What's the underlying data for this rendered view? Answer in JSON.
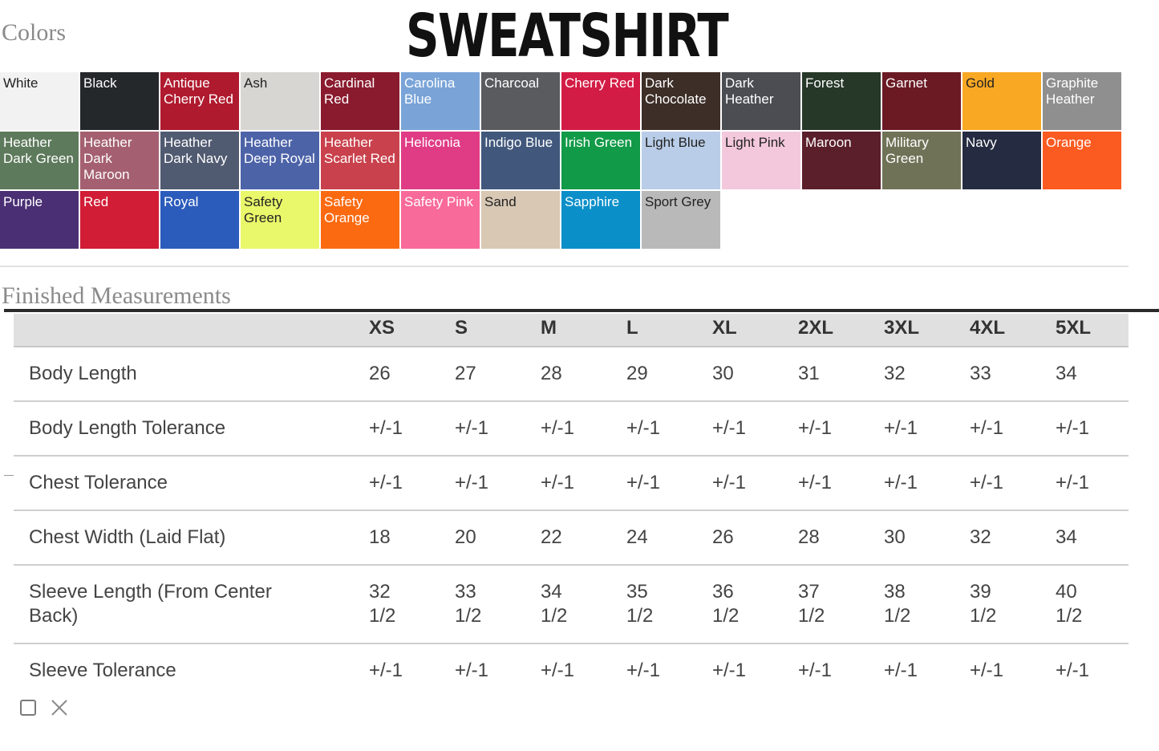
{
  "header": {
    "colors_heading": "Colors",
    "title": "SWEATSHIRT"
  },
  "swatches": [
    {
      "label": "White",
      "bg": "#f2f2f2",
      "fg": "#222222"
    },
    {
      "label": "Black",
      "bg": "#25282b",
      "fg": "#ffffff"
    },
    {
      "label": "Antique Cherry Red",
      "bg": "#b01a2e",
      "fg": "#ffffff"
    },
    {
      "label": "Ash",
      "bg": "#d8d6d2",
      "fg": "#222222"
    },
    {
      "label": "Cardinal Red",
      "bg": "#8a1b2e",
      "fg": "#ffffff"
    },
    {
      "label": "Carolina Blue",
      "bg": "#7aa4d8",
      "fg": "#ffffff"
    },
    {
      "label": "Charcoal",
      "bg": "#5a5b5f",
      "fg": "#ffffff"
    },
    {
      "label": "Cherry Red",
      "bg": "#d31c45",
      "fg": "#ffffff"
    },
    {
      "label": "Dark Chocolate",
      "bg": "#3d2e28",
      "fg": "#ffffff"
    },
    {
      "label": "Dark Heather",
      "bg": "#4b4d52",
      "fg": "#ffffff"
    },
    {
      "label": "Forest",
      "bg": "#263828",
      "fg": "#ffffff"
    },
    {
      "label": "Garnet",
      "bg": "#6b1a24",
      "fg": "#ffffff"
    },
    {
      "label": "Gold",
      "bg": "#f8a823",
      "fg": "#222222"
    },
    {
      "label": "Graphite Heather",
      "bg": "#8f8f90",
      "fg": "#ffffff"
    },
    {
      "label": "Heather Dark Green",
      "bg": "#5e7a5c",
      "fg": "#ffffff"
    },
    {
      "label": "Heather Dark Maroon",
      "bg": "#a46070",
      "fg": "#ffffff"
    },
    {
      "label": "Heather Dark Navy",
      "bg": "#505a70",
      "fg": "#ffffff"
    },
    {
      "label": "Heather Deep Royal",
      "bg": "#4c63a8",
      "fg": "#ffffff"
    },
    {
      "label": "Heather Scarlet Red",
      "bg": "#c9414c",
      "fg": "#ffffff"
    },
    {
      "label": "Heliconia",
      "bg": "#e03c86",
      "fg": "#ffffff"
    },
    {
      "label": "Indigo Blue",
      "bg": "#41587c",
      "fg": "#ffffff"
    },
    {
      "label": "Irish Green",
      "bg": "#119a48",
      "fg": "#ffffff"
    },
    {
      "label": "Light Blue",
      "bg": "#b9cde8",
      "fg": "#222222"
    },
    {
      "label": "Light Pink",
      "bg": "#f4c8dc",
      "fg": "#222222"
    },
    {
      "label": "Maroon",
      "bg": "#5b1f2b",
      "fg": "#ffffff"
    },
    {
      "label": "Military Green",
      "bg": "#707257",
      "fg": "#ffffff"
    },
    {
      "label": "Navy",
      "bg": "#252b40",
      "fg": "#ffffff"
    },
    {
      "label": "Orange",
      "bg": "#fb5a20",
      "fg": "#ffffff"
    },
    {
      "label": "Purple",
      "bg": "#4a2f74",
      "fg": "#ffffff"
    },
    {
      "label": "Red",
      "bg": "#d11d35",
      "fg": "#ffffff"
    },
    {
      "label": "Royal",
      "bg": "#2b5bbb",
      "fg": "#ffffff"
    },
    {
      "label": "Safety Green",
      "bg": "#e9f76a",
      "fg": "#222222"
    },
    {
      "label": "Safety Orange",
      "bg": "#fb6a11",
      "fg": "#ffffff"
    },
    {
      "label": "Safety Pink",
      "bg": "#f86a9a",
      "fg": "#ffffff"
    },
    {
      "label": "Sand",
      "bg": "#d8c8b4",
      "fg": "#222222"
    },
    {
      "label": "Sapphire",
      "bg": "#0a8fc9",
      "fg": "#ffffff"
    },
    {
      "label": "Sport Grey",
      "bg": "#b9b9b9",
      "fg": "#222222"
    }
  ],
  "measurements": {
    "heading": "Finished Measurements",
    "sizes": [
      "XS",
      "S",
      "M",
      "L",
      "XL",
      "2XL",
      "3XL",
      "4XL",
      "5XL"
    ],
    "rows": [
      {
        "label": "Body Length",
        "values": [
          "26",
          "27",
          "28",
          "29",
          "30",
          "31",
          "32",
          "33",
          "34"
        ]
      },
      {
        "label": "Body Length Tolerance",
        "values": [
          "+/-1",
          "+/-1",
          "+/-1",
          "+/-1",
          "+/-1",
          "+/-1",
          "+/-1",
          "+/-1",
          "+/-1"
        ]
      },
      {
        "label": "Chest Tolerance",
        "values": [
          "+/-1",
          "+/-1",
          "+/-1",
          "+/-1",
          "+/-1",
          "+/-1",
          "+/-1",
          "+/-1",
          "+/-1"
        ]
      },
      {
        "label": "Chest Width (Laid Flat)",
        "values": [
          "18",
          "20",
          "22",
          "24",
          "26",
          "28",
          "30",
          "32",
          "34"
        ]
      },
      {
        "label": "Sleeve Length (From Center Back)",
        "values": [
          "32 1/2",
          "33 1/2",
          "34 1/2",
          "35 1/2",
          "36 1/2",
          "37 1/2",
          "38 1/2",
          "39 1/2",
          "40 1/2"
        ]
      },
      {
        "label": "Sleeve Tolerance",
        "values": [
          "+/-1",
          "+/-1",
          "+/-1",
          "+/-1",
          "+/-1",
          "+/-1",
          "+/-1",
          "+/-1",
          "+/-1"
        ]
      }
    ]
  },
  "icons": {
    "checkbox": "checkbox-icon",
    "close": "close-icon"
  }
}
